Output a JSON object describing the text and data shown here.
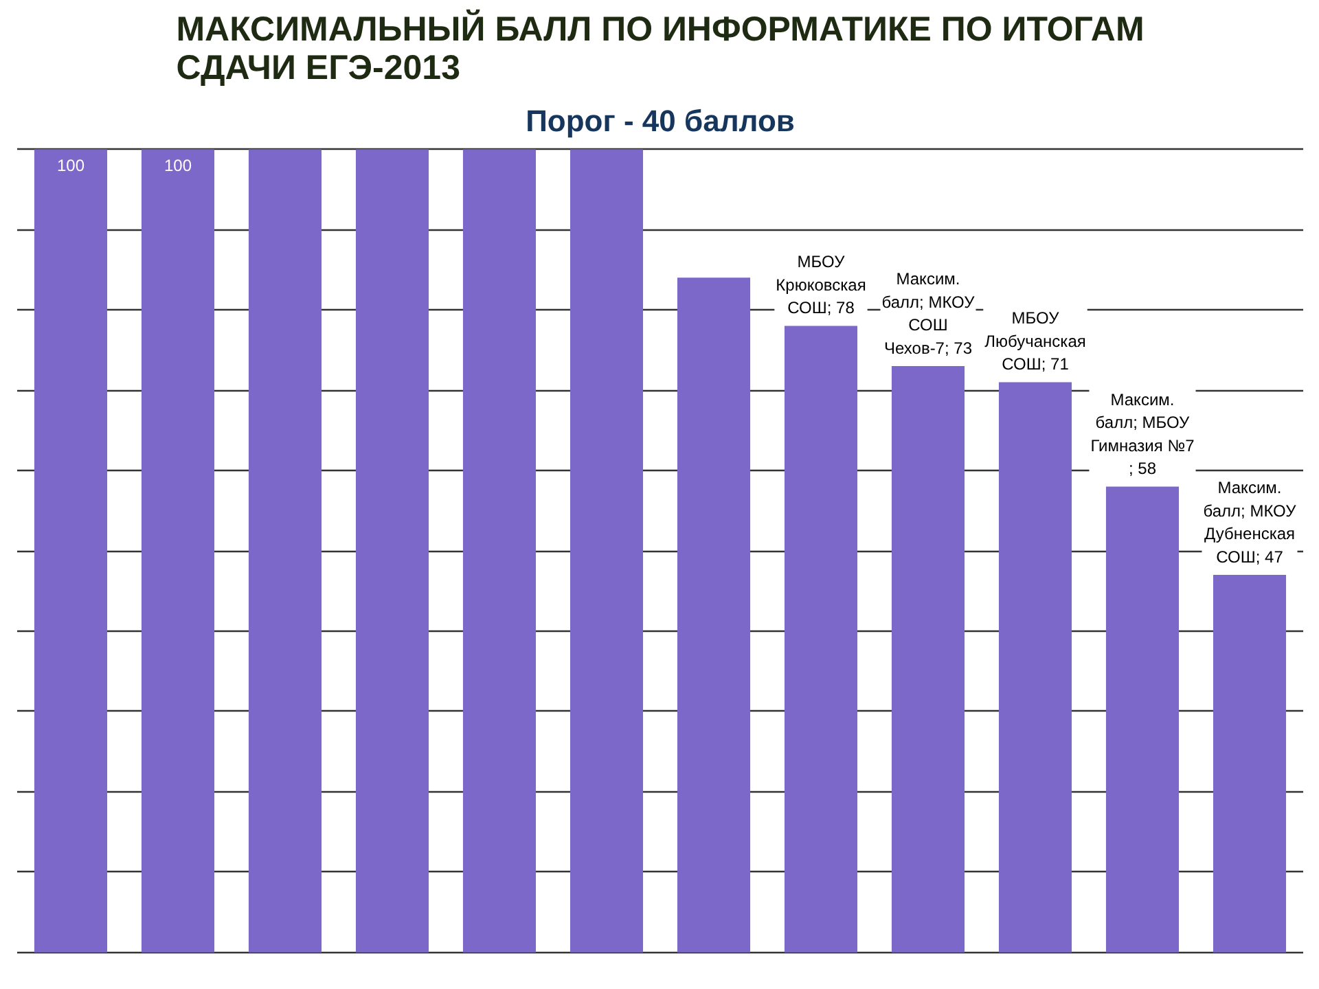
{
  "chart_data": {
    "type": "bar",
    "title": "МАКСИМАЛЬНЫЙ БАЛЛ ПО ИНФОРМАТИКЕ ПО ИТОГАМ СДАЧИ ЕГЭ-2013",
    "subtitle": "Порог - 40 баллов",
    "categories": [
      null,
      null,
      null,
      null,
      null,
      null,
      null,
      null,
      null,
      null,
      null,
      null
    ],
    "values": [
      100,
      100,
      100,
      100,
      100,
      100,
      84,
      78,
      73,
      71,
      58,
      47
    ],
    "color": "#7b68c8",
    "value_labels": [
      "100",
      "100",
      null,
      null,
      null,
      null,
      null,
      "МБОУ Крюковская СОШ; 78",
      "Максим. балл; МКОУ СОШ Чехов-7; 73",
      "МБОУ Любучанская СОШ; 71",
      "Максим. балл; МБОУ Гимназия №7 ; 58",
      "Максим. балл; МКОУ Дубненская СОШ; 47"
    ],
    "ylim": [
      0,
      100
    ],
    "yticks": [
      {
        "value": 0,
        "label": null
      },
      {
        "value": 10,
        "label": null
      },
      {
        "value": 20,
        "label": null
      },
      {
        "value": 30,
        "label": null
      },
      {
        "value": 40,
        "label": null
      },
      {
        "value": 50,
        "label": null
      },
      {
        "value": 60,
        "label": null
      },
      {
        "value": 70,
        "label": null
      },
      {
        "value": 80,
        "label": null
      },
      {
        "value": 90,
        "label": null
      },
      {
        "value": 100,
        "label": null
      }
    ],
    "grid": "y",
    "tick_labels": false
  }
}
